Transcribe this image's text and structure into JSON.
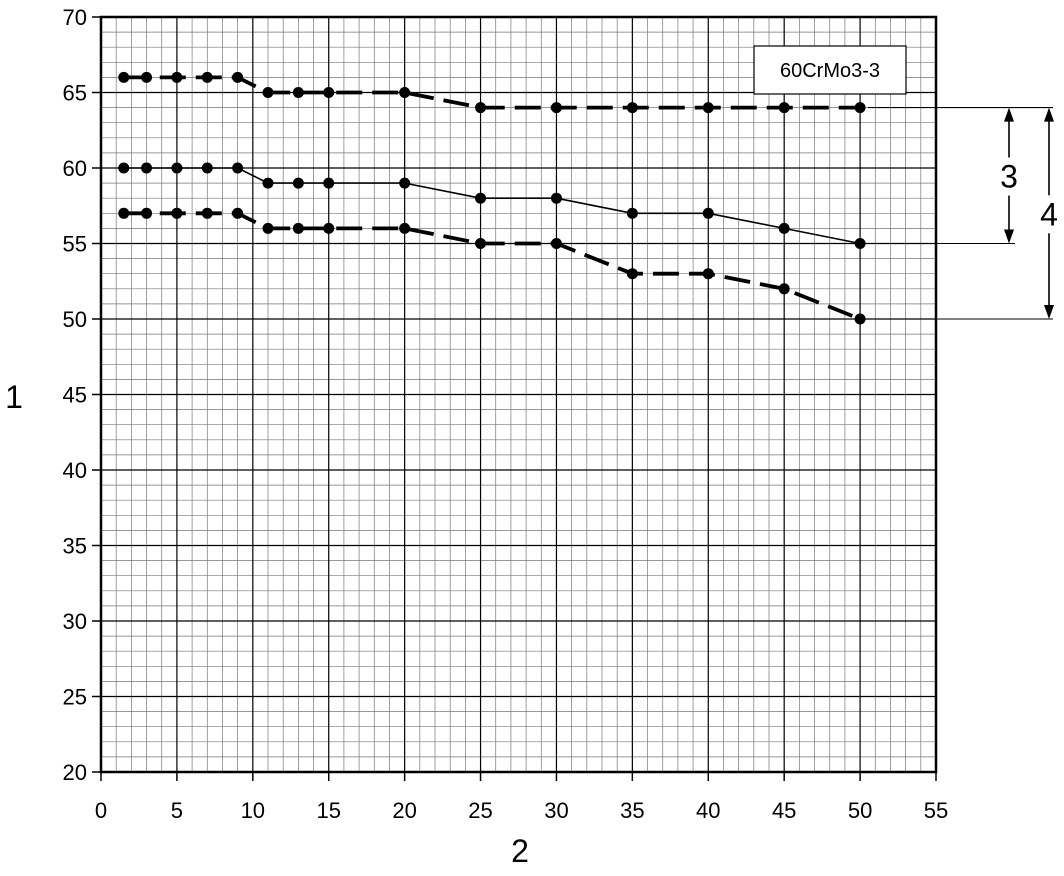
{
  "chart_data": {
    "type": "line",
    "title": "",
    "xlabel": "2",
    "ylabel": "1",
    "xlim": [
      0,
      55
    ],
    "ylim": [
      20,
      70
    ],
    "x_ticks": [
      0,
      5,
      10,
      15,
      20,
      25,
      30,
      35,
      40,
      45,
      50,
      55
    ],
    "y_ticks": [
      20,
      25,
      30,
      35,
      40,
      45,
      50,
      55,
      60,
      65,
      70
    ],
    "grid": true,
    "legend": {
      "text": "60CrMo3-3",
      "placement": "top-right"
    },
    "series": [
      {
        "style": "thick-dashed",
        "x": [
          1.5,
          3,
          5,
          7,
          9,
          11,
          13,
          15,
          20,
          25,
          30,
          35,
          40,
          45,
          50
        ],
        "y": [
          66,
          66,
          66,
          66,
          66,
          65,
          65,
          65,
          65,
          64,
          64,
          64,
          64,
          64,
          64
        ]
      },
      {
        "style": "thin-solid",
        "x": [
          1.5,
          3,
          5,
          7,
          9,
          11,
          13,
          15,
          20,
          25,
          30,
          35,
          40,
          45,
          50
        ],
        "y": [
          60,
          60,
          60,
          60,
          60,
          59,
          59,
          59,
          59,
          58,
          58,
          57,
          57,
          56,
          55
        ]
      },
      {
        "style": "thick-dashed",
        "x": [
          1.5,
          3,
          5,
          7,
          9,
          11,
          13,
          15,
          20,
          25,
          30,
          35,
          40,
          45,
          50
        ],
        "y": [
          57,
          57,
          57,
          57,
          57,
          56,
          56,
          56,
          56,
          55,
          55,
          53,
          53,
          52,
          50
        ]
      }
    ],
    "annotations": [
      {
        "label": "3",
        "from": 64,
        "to": 55
      },
      {
        "label": "4",
        "from": 64,
        "to": 50
      }
    ]
  }
}
